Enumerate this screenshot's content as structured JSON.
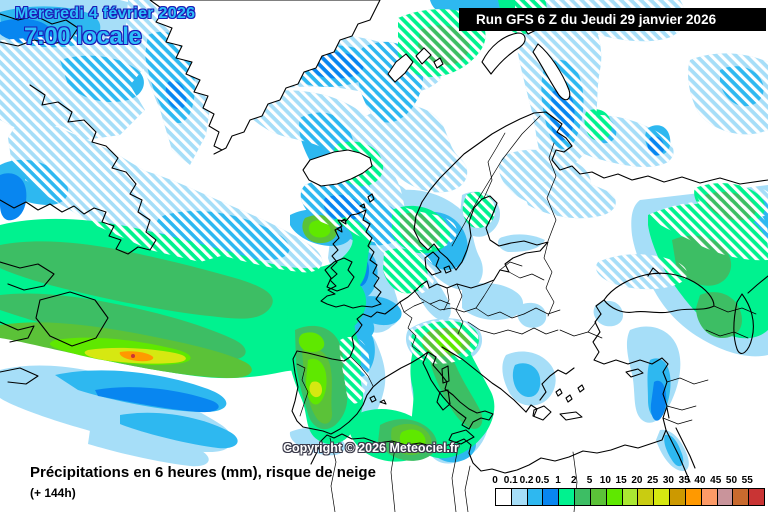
{
  "header": {
    "date": "Mercredi 4 février 2026",
    "time": "7:00 locale",
    "run_info": "Run GFS 6 Z du Jeudi 29 janvier 2026"
  },
  "map": {
    "copyright": "Copyright © 2026 Meteociel.fr",
    "region": "Europe / Atlantique Nord"
  },
  "caption": {
    "title": "Précipitations en 6 heures (mm), risque de neige",
    "lead_time": "(+ 144h)"
  },
  "legend": {
    "labels": [
      "0",
      "0.1",
      "0.2",
      "0.5",
      "1",
      "2",
      "5",
      "10",
      "15",
      "20",
      "25",
      "30",
      "35",
      "40",
      "45",
      "50",
      "55"
    ],
    "colors": [
      "#FFFFFF",
      "#A6DEF8",
      "#2EB8F0",
      "#0886F0",
      "#00F28F",
      "#3DBE64",
      "#5BC238",
      "#5FE800",
      "#AAE832",
      "#C9CC11",
      "#D6E811",
      "#CC9900",
      "#FF9900",
      "#FC9A67",
      "#C9949B",
      "#C96A2E",
      "#C93434"
    ]
  },
  "colors": {
    "header_text": "#2FBDF8",
    "header_outline": "#1C1CB8",
    "runbox_bg": "#000000",
    "runbox_text": "#FFFFFF",
    "land": "#FFFFFF",
    "coastline": "#000000"
  }
}
